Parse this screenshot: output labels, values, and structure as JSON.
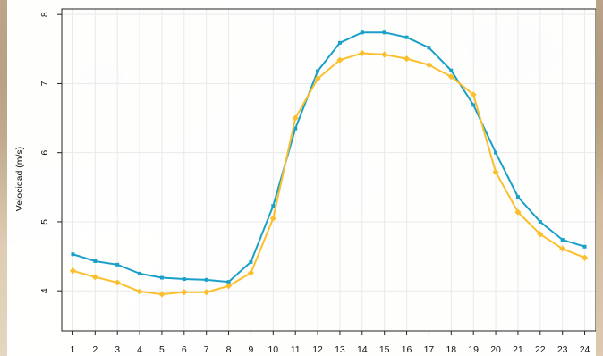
{
  "chart_data": {
    "type": "line",
    "title": "",
    "xlabel": "",
    "ylabel": "Velocidad (m/s)",
    "x": [
      1,
      2,
      3,
      4,
      5,
      6,
      7,
      8,
      9,
      10,
      11,
      12,
      13,
      14,
      15,
      16,
      17,
      18,
      19,
      20,
      21,
      22,
      23,
      24
    ],
    "xlim": [
      0.5,
      24.5
    ],
    "ylim": [
      3.42,
      8.08
    ],
    "yticks": [
      4,
      5,
      6,
      7,
      8
    ],
    "grid": true,
    "series": [
      {
        "color": "#1aa0c8",
        "marker": "square",
        "values": [
          4.53,
          4.43,
          4.38,
          4.25,
          4.19,
          4.17,
          4.16,
          4.13,
          4.42,
          5.23,
          6.35,
          7.18,
          7.59,
          7.74,
          7.74,
          7.67,
          7.52,
          7.19,
          6.69,
          6.0,
          5.36,
          5.0,
          4.74,
          4.64
        ]
      },
      {
        "color": "#fbbf2e",
        "marker": "diamond",
        "values": [
          4.29,
          4.2,
          4.12,
          3.99,
          3.95,
          3.98,
          3.98,
          4.07,
          4.26,
          5.05,
          6.5,
          7.07,
          7.34,
          7.44,
          7.42,
          7.36,
          7.27,
          7.1,
          6.84,
          5.72,
          5.14,
          4.82,
          4.61,
          4.48
        ]
      }
    ]
  }
}
